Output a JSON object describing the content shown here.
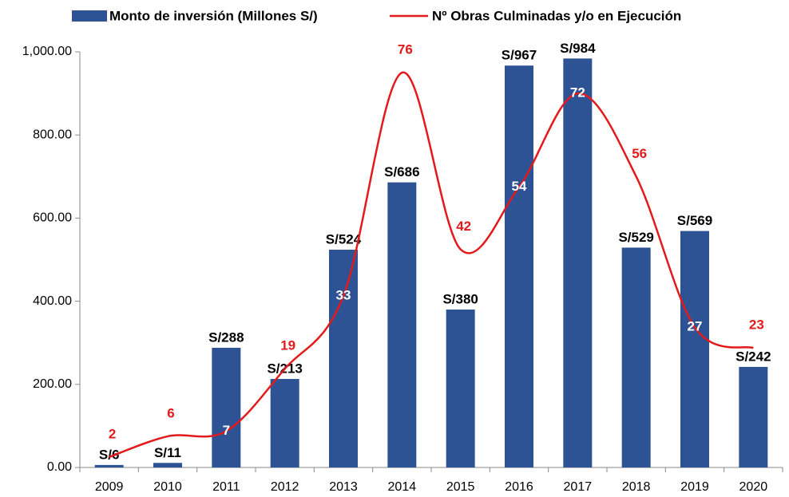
{
  "chart_data": {
    "type": "bar_line",
    "categories": [
      "2009",
      "2010",
      "2011",
      "2012",
      "2013",
      "2014",
      "2015",
      "2016",
      "2017",
      "2018",
      "2019",
      "2020"
    ],
    "series": [
      {
        "name": "Monto de inversión (Millones S/)",
        "type": "bar",
        "color": "#2e5395",
        "values": [
          6,
          11,
          288,
          213,
          524,
          686,
          380,
          967,
          984,
          529,
          569,
          242
        ],
        "value_labels": [
          "S/6",
          "S/11",
          "S/288",
          "S/213",
          "S/524",
          "S/686",
          "S/380",
          "S/967",
          "S/984",
          "S/529",
          "S/569",
          "S/242"
        ]
      },
      {
        "name": "Nº Obras Culminadas y/o en Ejecución",
        "type": "line",
        "axis": "y2",
        "color": "#e31a1c",
        "values": [
          2,
          6,
          7,
          19,
          33,
          76,
          42,
          54,
          72,
          56,
          27,
          23
        ]
      }
    ],
    "ylim": [
      0,
      1000
    ],
    "yticks": [
      {
        "value": 0,
        "label": "0.00"
      },
      {
        "value": 200,
        "label": "200.00"
      },
      {
        "value": 400,
        "label": "400.00"
      },
      {
        "value": 600,
        "label": "600.00"
      },
      {
        "value": 800,
        "label": "800.00"
      },
      {
        "value": 1000,
        "label": "1,000.00"
      }
    ],
    "y2lim": [
      0,
      80
    ],
    "legend": "top"
  }
}
